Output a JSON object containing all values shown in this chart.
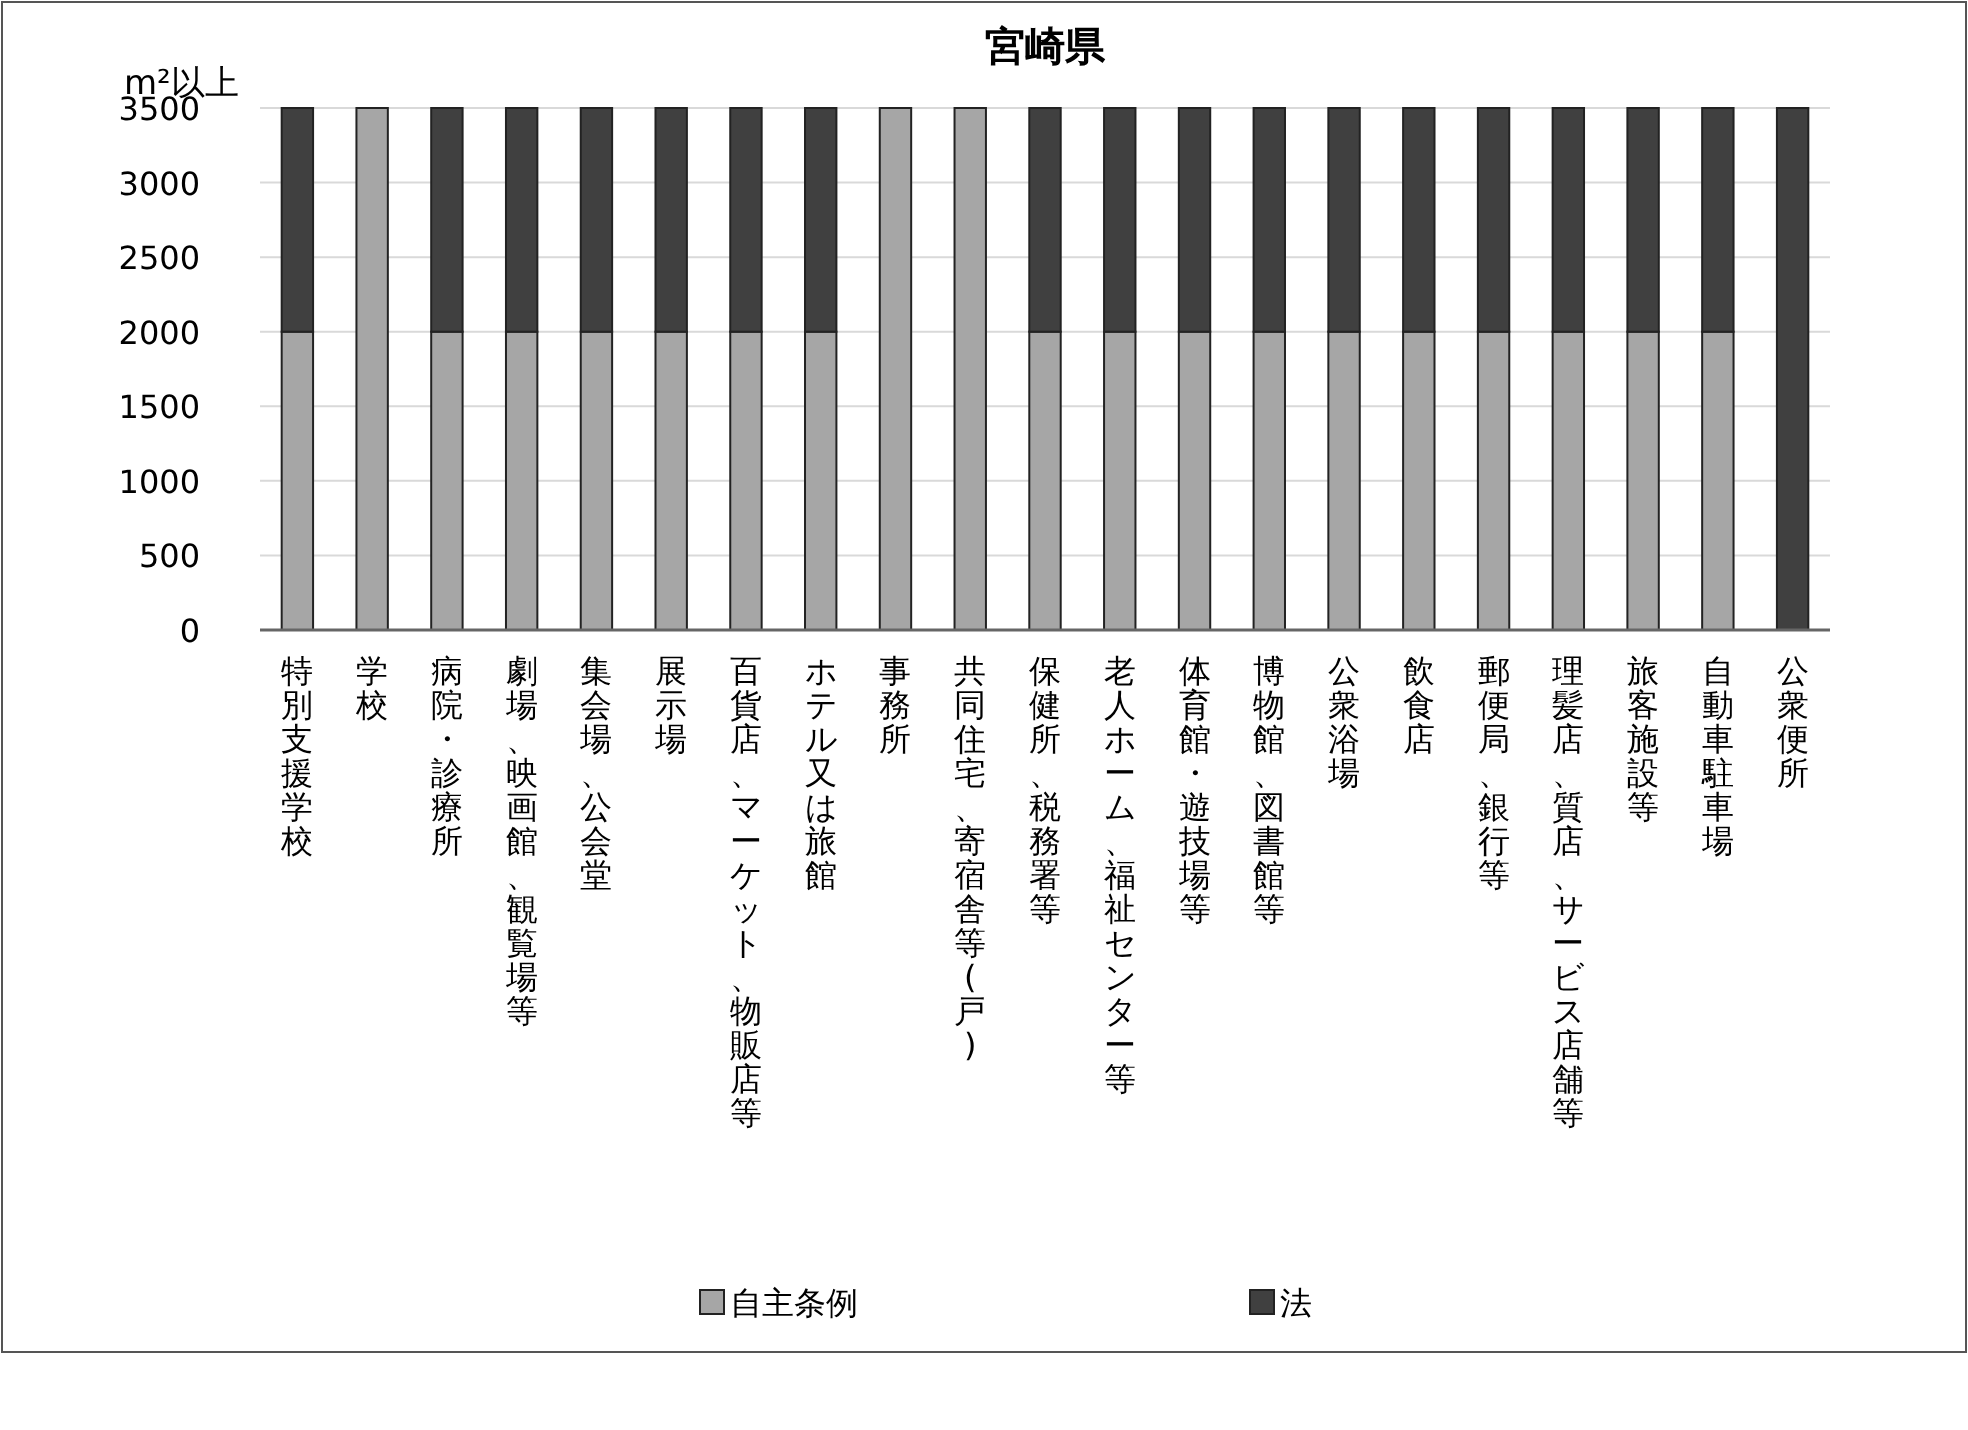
{
  "chart_data": {
    "type": "bar",
    "title": "宮崎県",
    "ylabel": "m²以上",
    "stacked": true,
    "categories": [
      "特別支援学校",
      "学校",
      "病院・診療所",
      "劇場、映画館、観覧場等",
      "集会場、公会堂",
      "展示場",
      "百貨店、マーケット、物販店等",
      "ホテル又は旅館",
      "事務所",
      "共同住宅、寄宿舎等(戸)",
      "保健所、税務署等",
      "老人ホーム、福祉センター等",
      "体育館・遊技場等",
      "博物館、図書館等",
      "公衆浴場",
      "飲食店",
      "郵便局、銀行等",
      "理髪店、質店、サービス店舗等",
      "旅客施設等",
      "自動車駐車場",
      "公衆便所"
    ],
    "series": [
      {
        "name": "自主条例",
        "color": "#a6a6a6",
        "values": [
          2000,
          3500,
          2000,
          2000,
          2000,
          2000,
          2000,
          2000,
          3500,
          3500,
          2000,
          2000,
          2000,
          2000,
          2000,
          2000,
          2000,
          2000,
          2000,
          2000,
          0
        ]
      },
      {
        "name": "法",
        "color": "#404040",
        "values": [
          1500,
          0,
          1500,
          1500,
          1500,
          1500,
          1500,
          1500,
          0,
          0,
          1500,
          1500,
          1500,
          1500,
          1500,
          1500,
          1500,
          1500,
          1500,
          1500,
          3500
        ]
      }
    ],
    "ylim": [
      0,
      3500
    ],
    "yticks": [
      0,
      500,
      1000,
      1500,
      2000,
      2500,
      3000,
      3500
    ],
    "grid": "y",
    "legend": "bottom"
  }
}
